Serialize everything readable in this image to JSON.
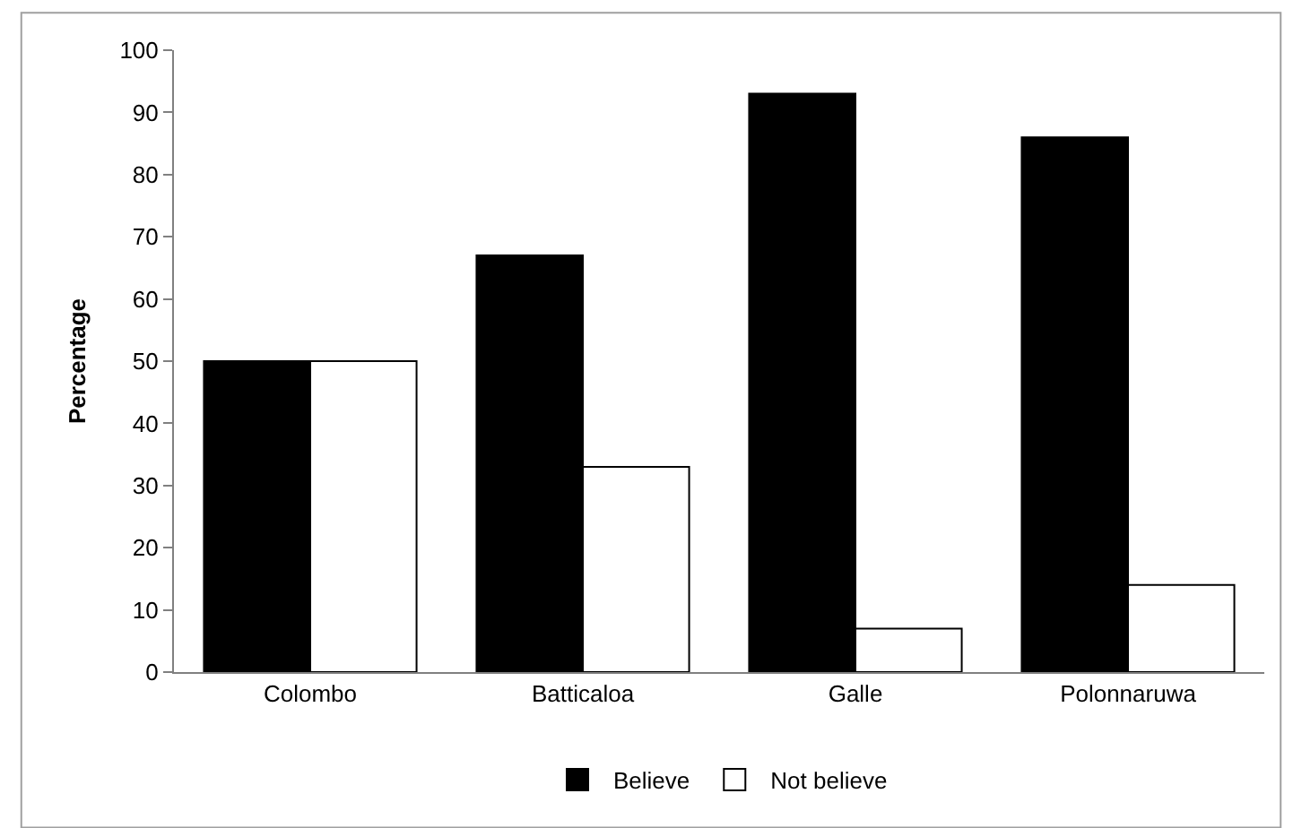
{
  "chart_data": {
    "type": "bar",
    "ylabel": "Percentage",
    "categories": [
      "Colombo",
      "Batticaloa",
      "Galle",
      "Polonnaruwa"
    ],
    "series": [
      {
        "name": "Believe",
        "color": "#000000",
        "values": [
          50,
          67,
          93,
          86
        ]
      },
      {
        "name": "Not believe",
        "color": "#ffffff",
        "values": [
          50,
          33,
          7,
          14
        ]
      }
    ],
    "ylim": [
      0,
      100
    ],
    "yticks": [
      0,
      10,
      20,
      30,
      40,
      50,
      60,
      70,
      80,
      90,
      100
    ],
    "grid": false,
    "legend": "bottom"
  }
}
